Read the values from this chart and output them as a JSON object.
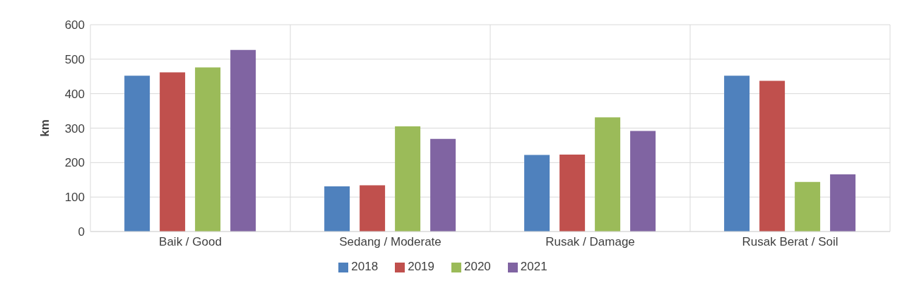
{
  "chart_data": {
    "type": "bar",
    "ylabel": "km",
    "categories": [
      "Baik / Good",
      "Sedang / Moderate",
      "Rusak / Damage",
      "Rusak Berat / Soil"
    ],
    "series": [
      {
        "name": "2018",
        "color": "#4f81bd",
        "values": [
          452,
          131,
          222,
          452
        ]
      },
      {
        "name": "2019",
        "color": "#c0504d",
        "values": [
          462,
          134,
          223,
          437
        ]
      },
      {
        "name": "2020",
        "color": "#9bbb59",
        "values": [
          476,
          305,
          331,
          144
        ]
      },
      {
        "name": "2021",
        "color": "#8064a2",
        "values": [
          527,
          269,
          292,
          166
        ]
      }
    ],
    "ylim": [
      0,
      600
    ],
    "yticks": [
      0,
      100,
      200,
      300,
      400,
      500,
      600
    ],
    "grid": true,
    "legend": "bottom"
  }
}
